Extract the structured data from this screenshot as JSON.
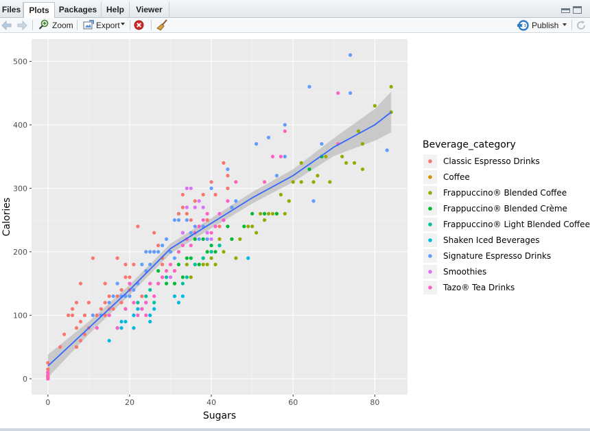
{
  "tabs": [
    {
      "label": "Files"
    },
    {
      "label": "Plots"
    },
    {
      "label": "Packages"
    },
    {
      "label": "Help"
    },
    {
      "label": "Viewer"
    }
  ],
  "active_tab": "Plots",
  "toolbar": {
    "zoom_label": "Zoom",
    "export_label": "Export",
    "publish_label": "Publish"
  },
  "icons": {
    "back": "arrow-left-icon",
    "forward": "arrow-right-icon",
    "zoom": "magnifier-icon",
    "export": "export-icon",
    "remove": "remove-plot-icon",
    "clear": "broom-icon",
    "publish": "publish-icon",
    "refresh": "refresh-icon"
  },
  "chart_data": {
    "type": "scatter",
    "xlabel": "Sugars",
    "ylabel": "Calories",
    "xlim": [
      -4,
      88
    ],
    "ylim": [
      -25,
      535
    ],
    "x_ticks": [
      0,
      20,
      40,
      60,
      80
    ],
    "y_ticks": [
      0,
      100,
      200,
      300,
      400,
      500
    ],
    "grid": true,
    "legend_title": "Beverage_category",
    "legend_position": "right",
    "series": [
      {
        "name": "Classic Espresso Drinks",
        "color": "#F8766D",
        "points": [
          [
            0,
            0
          ],
          [
            0,
            5
          ],
          [
            0,
            10
          ],
          [
            0,
            15
          ],
          [
            0,
            25
          ],
          [
            3,
            50
          ],
          [
            4,
            70
          ],
          [
            5,
            100
          ],
          [
            6,
            110
          ],
          [
            6,
            100
          ],
          [
            7,
            80
          ],
          [
            7,
            50
          ],
          [
            7,
            120
          ],
          [
            8,
            60
          ],
          [
            8,
            90
          ],
          [
            8,
            150
          ],
          [
            9,
            100
          ],
          [
            9,
            70
          ],
          [
            10,
            120
          ],
          [
            10,
            80
          ],
          [
            11,
            190
          ],
          [
            12,
            100
          ],
          [
            13,
            110
          ],
          [
            14,
            100
          ],
          [
            14,
            120
          ],
          [
            14,
            150
          ],
          [
            15,
            110
          ],
          [
            15,
            130
          ],
          [
            16,
            110
          ],
          [
            17,
            190
          ],
          [
            17,
            130
          ],
          [
            18,
            120
          ],
          [
            18,
            140
          ],
          [
            19,
            160
          ],
          [
            19,
            180
          ],
          [
            20,
            160
          ],
          [
            20,
            140
          ],
          [
            21,
            180
          ],
          [
            22,
            240
          ],
          [
            23,
            130
          ],
          [
            24,
            170
          ],
          [
            25,
            150
          ],
          [
            26,
            200
          ],
          [
            26,
            230
          ],
          [
            27,
            210
          ],
          [
            28,
            180
          ],
          [
            28,
            190
          ],
          [
            31,
            170
          ],
          [
            31,
            150
          ],
          [
            32,
            260
          ],
          [
            33,
            290
          ],
          [
            33,
            270
          ],
          [
            34,
            260
          ],
          [
            35,
            250
          ],
          [
            36,
            280
          ],
          [
            37,
            240
          ],
          [
            38,
            290
          ],
          [
            39,
            250
          ],
          [
            40,
            310
          ],
          [
            41,
            290
          ],
          [
            42,
            240
          ],
          [
            43,
            340
          ],
          [
            44,
            300
          ],
          [
            44,
            320
          ]
        ]
      },
      {
        "name": "Coffee",
        "color": "#D39200",
        "points": [
          [
            0,
            3
          ],
          [
            0,
            4
          ],
          [
            0,
            5
          ],
          [
            0,
            10
          ]
        ]
      },
      {
        "name": "Frappuccino® Blended Coffee",
        "color": "#93AA00",
        "points": [
          [
            34,
            180
          ],
          [
            35,
            160
          ],
          [
            36,
            180
          ],
          [
            38,
            180
          ],
          [
            38,
            190
          ],
          [
            39,
            180
          ],
          [
            40,
            200
          ],
          [
            40,
            190
          ],
          [
            41,
            180
          ],
          [
            42,
            220
          ],
          [
            43,
            200
          ],
          [
            45,
            220
          ],
          [
            46,
            190
          ],
          [
            47,
            220
          ],
          [
            49,
            240
          ],
          [
            50,
            240
          ],
          [
            51,
            230
          ],
          [
            52,
            260
          ],
          [
            53,
            250
          ],
          [
            54,
            260
          ],
          [
            55,
            260
          ],
          [
            56,
            260
          ],
          [
            57,
            290
          ],
          [
            58,
            260
          ],
          [
            59,
            280
          ],
          [
            60,
            310
          ],
          [
            62,
            310
          ],
          [
            62,
            340
          ],
          [
            65,
            310
          ],
          [
            66,
            320
          ],
          [
            68,
            350
          ],
          [
            69,
            310
          ],
          [
            72,
            350
          ],
          [
            73,
            340
          ],
          [
            75,
            340
          ],
          [
            76,
            390
          ],
          [
            77,
            330
          ],
          [
            77,
            370
          ],
          [
            80,
            430
          ],
          [
            84,
            460
          ],
          [
            84,
            420
          ]
        ]
      },
      {
        "name": "Frappuccino® Blended Crème",
        "color": "#00BA38",
        "points": [
          [
            27,
            170
          ],
          [
            29,
            150
          ],
          [
            31,
            150
          ],
          [
            32,
            180
          ],
          [
            33,
            160
          ],
          [
            34,
            190
          ],
          [
            35,
            190
          ],
          [
            36,
            220
          ],
          [
            37,
            180
          ],
          [
            38,
            220
          ],
          [
            39,
            200
          ],
          [
            40,
            210
          ],
          [
            41,
            200
          ],
          [
            42,
            210
          ],
          [
            44,
            240
          ],
          [
            45,
            220
          ],
          [
            48,
            240
          ],
          [
            50,
            260
          ],
          [
            53,
            260
          ],
          [
            56,
            260
          ],
          [
            64,
            330
          ],
          [
            67,
            350
          ]
        ]
      },
      {
        "name": "Frappuccino® Light Blended Coffee",
        "color": "#00C19F",
        "points": [
          [
            22,
            120
          ],
          [
            24,
            130
          ],
          [
            25,
            140
          ],
          [
            26,
            120
          ],
          [
            27,
            150
          ],
          [
            29,
            160
          ],
          [
            33,
            150
          ],
          [
            34,
            160
          ],
          [
            36,
            180
          ],
          [
            38,
            190
          ],
          [
            40,
            200
          ],
          [
            42,
            210
          ]
        ]
      },
      {
        "name": "Shaken Iced Beverages",
        "color": "#00B9E3",
        "points": [
          [
            15,
            60
          ],
          [
            17,
            80
          ],
          [
            18,
            80
          ],
          [
            18,
            90
          ],
          [
            19,
            90
          ],
          [
            19,
            110
          ],
          [
            21,
            80
          ],
          [
            21,
            100
          ],
          [
            22,
            110
          ],
          [
            23,
            110
          ],
          [
            24,
            120
          ],
          [
            25,
            100
          ],
          [
            25,
            90
          ],
          [
            26,
            110
          ],
          [
            31,
            130
          ],
          [
            32,
            120
          ],
          [
            33,
            130
          ],
          [
            49,
            190
          ]
        ]
      },
      {
        "name": "Signature Espresso Drinks",
        "color": "#619CFF",
        "points": [
          [
            11,
            100
          ],
          [
            13,
            100
          ],
          [
            15,
            120
          ],
          [
            16,
            130
          ],
          [
            17,
            150
          ],
          [
            18,
            130
          ],
          [
            19,
            130
          ],
          [
            20,
            130
          ],
          [
            21,
            140
          ],
          [
            22,
            150
          ],
          [
            23,
            180
          ],
          [
            24,
            200
          ],
          [
            24,
            170
          ],
          [
            25,
            200
          ],
          [
            25,
            180
          ],
          [
            26,
            200
          ],
          [
            27,
            200
          ],
          [
            28,
            210
          ],
          [
            29,
            220
          ],
          [
            30,
            200
          ],
          [
            31,
            190
          ],
          [
            31,
            250
          ],
          [
            32,
            250
          ],
          [
            33,
            230
          ],
          [
            34,
            250
          ],
          [
            35,
            230
          ],
          [
            36,
            240
          ],
          [
            37,
            220
          ],
          [
            38,
            240
          ],
          [
            39,
            220
          ],
          [
            40,
            300
          ],
          [
            41,
            240
          ],
          [
            43,
            250
          ],
          [
            44,
            330
          ],
          [
            45,
            270
          ],
          [
            46,
            280
          ],
          [
            51,
            370
          ],
          [
            54,
            380
          ],
          [
            56,
            320
          ],
          [
            58,
            400
          ],
          [
            58,
            350
          ],
          [
            64,
            460
          ],
          [
            65,
            280
          ],
          [
            67,
            370
          ],
          [
            74,
            510
          ],
          [
            74,
            450
          ],
          [
            83,
            360
          ]
        ]
      },
      {
        "name": "Smoothies",
        "color": "#DB72FB",
        "points": [
          [
            30,
            160
          ],
          [
            32,
            200
          ],
          [
            33,
            230
          ],
          [
            34,
            270
          ],
          [
            34,
            300
          ],
          [
            35,
            300
          ],
          [
            36,
            270
          ],
          [
            37,
            280
          ],
          [
            38,
            270
          ],
          [
            39,
            230
          ],
          [
            40,
            220
          ]
        ]
      },
      {
        "name": "Tazo® Tea Drinks",
        "color": "#FF61C3",
        "points": [
          [
            0,
            0
          ],
          [
            0,
            2
          ],
          [
            0,
            6
          ],
          [
            0,
            10
          ],
          [
            12,
            80
          ],
          [
            15,
            100
          ],
          [
            17,
            80
          ],
          [
            19,
            110
          ],
          [
            20,
            150
          ],
          [
            21,
            120
          ],
          [
            22,
            100
          ],
          [
            23,
            110
          ],
          [
            24,
            100
          ],
          [
            24,
            120
          ],
          [
            25,
            150
          ],
          [
            26,
            130
          ],
          [
            27,
            150
          ],
          [
            28,
            160
          ],
          [
            29,
            170
          ],
          [
            30,
            180
          ],
          [
            31,
            170
          ],
          [
            32,
            200
          ],
          [
            33,
            210
          ],
          [
            34,
            220
          ],
          [
            35,
            210
          ],
          [
            36,
            230
          ],
          [
            37,
            240
          ],
          [
            38,
            250
          ],
          [
            39,
            260
          ],
          [
            40,
            230
          ],
          [
            41,
            240
          ],
          [
            42,
            260
          ],
          [
            43,
            250
          ],
          [
            44,
            280
          ],
          [
            46,
            310
          ],
          [
            53,
            310
          ],
          [
            55,
            350
          ],
          [
            57,
            350
          ],
          [
            58,
            390
          ],
          [
            71,
            450
          ],
          [
            71,
            370
          ]
        ]
      }
    ],
    "smooth": {
      "color": "#3366FF",
      "band_color": "#BDBDBD",
      "points": [
        [
          0,
          20
        ],
        [
          10,
          80
        ],
        [
          20,
          140
        ],
        [
          30,
          205
        ],
        [
          40,
          245
        ],
        [
          50,
          285
        ],
        [
          60,
          320
        ],
        [
          70,
          365
        ],
        [
          80,
          400
        ],
        [
          84,
          420
        ]
      ],
      "band_half_width": [
        18,
        10,
        8,
        8,
        8,
        9,
        10,
        14,
        25,
        32
      ]
    }
  }
}
